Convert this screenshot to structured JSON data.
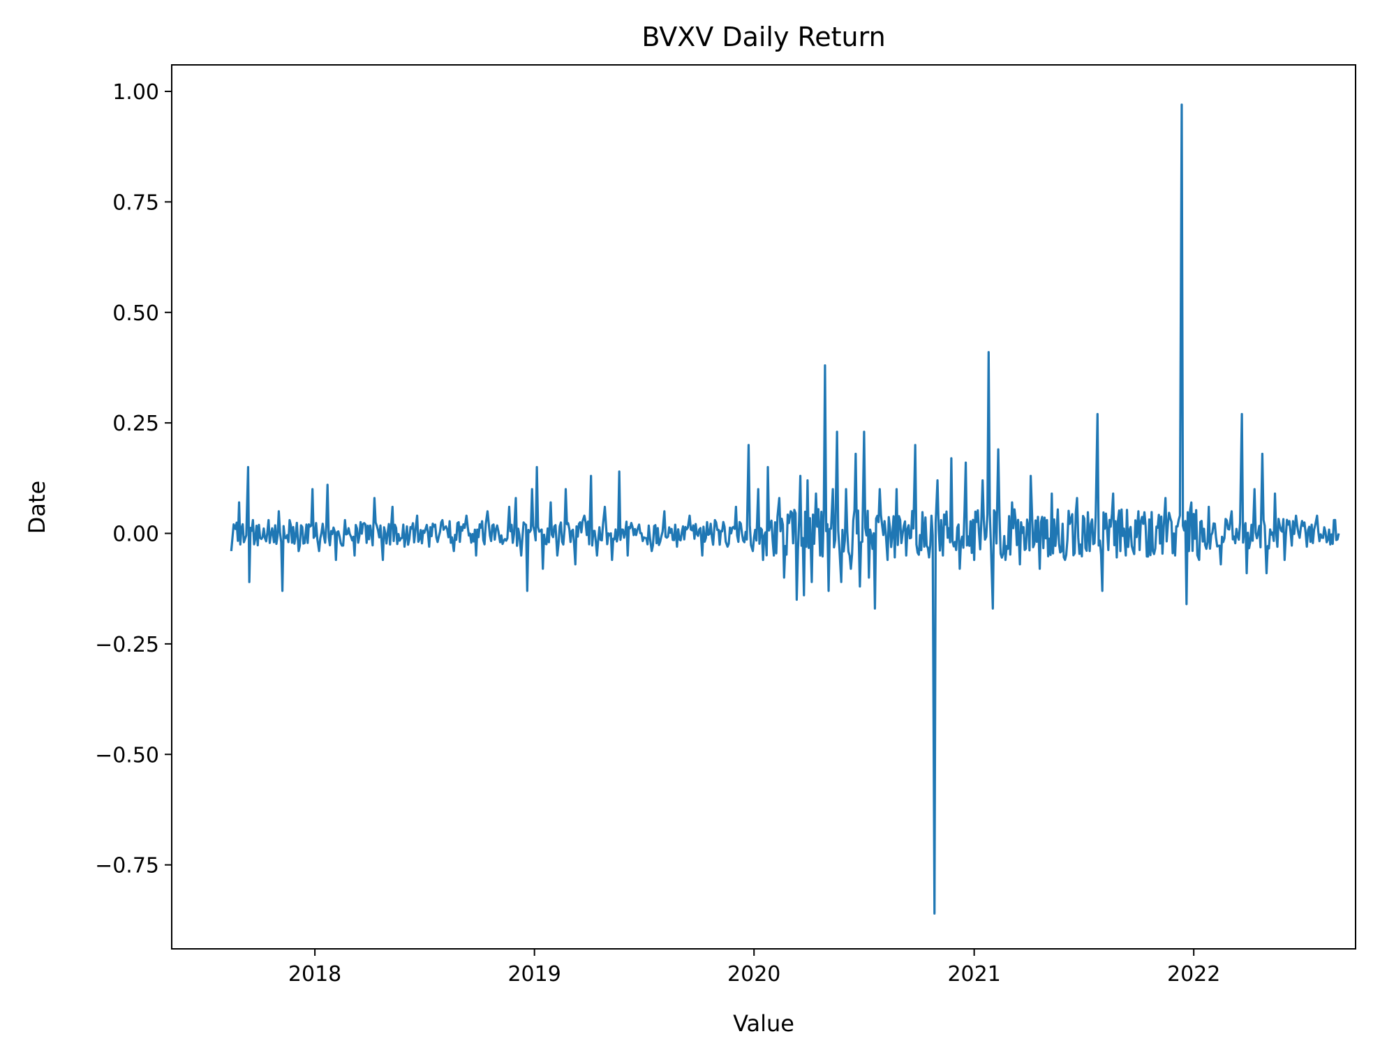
{
  "chart_data": {
    "type": "line",
    "title": "BVXV Daily Return",
    "xlabel": "Value",
    "ylabel": "Date",
    "x_tick_labels": [
      "2018",
      "2019",
      "2020",
      "2021",
      "2022"
    ],
    "y_tick_labels": [
      "1.00",
      "0.75",
      "0.50",
      "0.25",
      "0.00",
      "−0.25",
      "−0.50",
      "−0.75"
    ],
    "y_ticks": [
      1.0,
      0.75,
      0.5,
      0.25,
      0.0,
      -0.25,
      -0.5,
      -0.75
    ],
    "ylim": [
      -0.94,
      1.06
    ],
    "xlim": [
      "2017-05-08",
      "2022-09-27"
    ],
    "grid": false,
    "legend": "none",
    "series": [
      {
        "color": "#1f77b4",
        "points": [
          [
            "2017-08-15",
            -0.04
          ],
          [
            "2017-08-22",
            0.01
          ],
          [
            "2017-08-28",
            0.07
          ],
          [
            "2017-09-05",
            -0.02
          ],
          [
            "2017-09-12",
            0.15
          ],
          [
            "2017-09-14",
            -0.11
          ],
          [
            "2017-09-20",
            0.03
          ],
          [
            "2017-10-02",
            -0.01
          ],
          [
            "2017-10-16",
            0.03
          ],
          [
            "2017-10-25",
            -0.02
          ],
          [
            "2017-11-02",
            0.05
          ],
          [
            "2017-11-08",
            -0.13
          ],
          [
            "2017-11-20",
            0.03
          ],
          [
            "2017-12-05",
            -0.04
          ],
          [
            "2017-12-18",
            0.02
          ],
          [
            "2017-12-28",
            0.1
          ],
          [
            "2018-01-08",
            -0.04
          ],
          [
            "2018-01-22",
            0.11
          ],
          [
            "2018-02-05",
            -0.06
          ],
          [
            "2018-02-20",
            0.03
          ],
          [
            "2018-03-08",
            -0.05
          ],
          [
            "2018-03-26",
            0.02
          ],
          [
            "2018-04-10",
            0.08
          ],
          [
            "2018-04-24",
            -0.06
          ],
          [
            "2018-05-10",
            0.06
          ],
          [
            "2018-05-30",
            -0.03
          ],
          [
            "2018-06-20",
            0.04
          ],
          [
            "2018-07-10",
            -0.03
          ],
          [
            "2018-08-01",
            0.03
          ],
          [
            "2018-08-20",
            -0.04
          ],
          [
            "2018-09-10",
            0.04
          ],
          [
            "2018-09-26",
            -0.05
          ],
          [
            "2018-10-15",
            0.05
          ],
          [
            "2018-11-05",
            -0.02
          ],
          [
            "2018-11-20",
            0.06
          ],
          [
            "2018-12-01",
            0.08
          ],
          [
            "2018-12-10",
            -0.05
          ],
          [
            "2018-12-20",
            -0.13
          ],
          [
            "2018-12-28",
            0.1
          ],
          [
            "2019-01-05",
            0.15
          ],
          [
            "2019-01-15",
            -0.08
          ],
          [
            "2019-01-28",
            0.07
          ],
          [
            "2019-02-08",
            -0.05
          ],
          [
            "2019-02-22",
            0.1
          ],
          [
            "2019-03-10",
            -0.07
          ],
          [
            "2019-03-25",
            0.04
          ],
          [
            "2019-04-05",
            0.13
          ],
          [
            "2019-04-15",
            -0.05
          ],
          [
            "2019-04-28",
            0.06
          ],
          [
            "2019-05-10",
            -0.06
          ],
          [
            "2019-05-22",
            0.14
          ],
          [
            "2019-06-05",
            -0.05
          ],
          [
            "2019-06-24",
            0.02
          ],
          [
            "2019-07-15",
            -0.04
          ],
          [
            "2019-08-05",
            0.05
          ],
          [
            "2019-08-26",
            -0.03
          ],
          [
            "2019-09-16",
            0.04
          ],
          [
            "2019-10-07",
            -0.05
          ],
          [
            "2019-10-28",
            0.03
          ],
          [
            "2019-11-18",
            -0.03
          ],
          [
            "2019-12-02",
            0.06
          ],
          [
            "2019-12-16",
            -0.02
          ],
          [
            "2019-12-23",
            0.2
          ],
          [
            "2019-12-30",
            -0.04
          ],
          [
            "2020-01-08",
            0.1
          ],
          [
            "2020-01-16",
            -0.06
          ],
          [
            "2020-01-24",
            0.15
          ],
          [
            "2020-02-03",
            -0.05
          ],
          [
            "2020-02-12",
            0.08
          ],
          [
            "2020-02-20",
            -0.1
          ],
          [
            "2020-03-02",
            0.05
          ],
          [
            "2020-03-12",
            -0.15
          ],
          [
            "2020-03-18",
            0.13
          ],
          [
            "2020-03-24",
            -0.14
          ],
          [
            "2020-03-30",
            0.12
          ],
          [
            "2020-04-06",
            -0.11
          ],
          [
            "2020-04-13",
            0.09
          ],
          [
            "2020-04-20",
            -0.05
          ],
          [
            "2020-04-28",
            0.38
          ],
          [
            "2020-05-04",
            -0.13
          ],
          [
            "2020-05-11",
            0.1
          ],
          [
            "2020-05-18",
            0.23
          ],
          [
            "2020-05-25",
            -0.11
          ],
          [
            "2020-06-02",
            0.1
          ],
          [
            "2020-06-10",
            -0.08
          ],
          [
            "2020-06-18",
            0.18
          ],
          [
            "2020-06-25",
            -0.12
          ],
          [
            "2020-07-02",
            0.23
          ],
          [
            "2020-07-10",
            -0.1
          ],
          [
            "2020-07-20",
            -0.17
          ],
          [
            "2020-07-28",
            0.1
          ],
          [
            "2020-08-10",
            -0.06
          ],
          [
            "2020-08-25",
            0.1
          ],
          [
            "2020-09-10",
            -0.05
          ],
          [
            "2020-09-25",
            0.2
          ],
          [
            "2020-10-10",
            -0.03
          ],
          [
            "2020-10-22",
            0.04
          ],
          [
            "2020-10-27",
            -0.86
          ],
          [
            "2020-11-01",
            0.12
          ],
          [
            "2020-11-10",
            -0.05
          ],
          [
            "2020-11-24",
            0.17
          ],
          [
            "2020-12-08",
            -0.08
          ],
          [
            "2020-12-18",
            0.16
          ],
          [
            "2021-01-01",
            -0.06
          ],
          [
            "2021-01-15",
            0.12
          ],
          [
            "2021-01-25",
            0.41
          ],
          [
            "2021-02-01",
            -0.17
          ],
          [
            "2021-02-10",
            0.19
          ],
          [
            "2021-02-22",
            -0.06
          ],
          [
            "2021-03-05",
            0.07
          ],
          [
            "2021-03-18",
            -0.07
          ],
          [
            "2021-04-05",
            0.13
          ],
          [
            "2021-04-20",
            -0.08
          ],
          [
            "2021-05-10",
            0.09
          ],
          [
            "2021-06-01",
            -0.06
          ],
          [
            "2021-06-21",
            0.08
          ],
          [
            "2021-07-12",
            -0.04
          ],
          [
            "2021-07-25",
            0.27
          ],
          [
            "2021-08-02",
            -0.13
          ],
          [
            "2021-08-20",
            0.09
          ],
          [
            "2021-09-10",
            -0.05
          ],
          [
            "2021-10-01",
            0.05
          ],
          [
            "2021-10-25",
            -0.04
          ],
          [
            "2021-11-15",
            0.08
          ],
          [
            "2021-12-01",
            -0.05
          ],
          [
            "2021-12-12",
            0.97
          ],
          [
            "2021-12-20",
            -0.16
          ],
          [
            "2021-12-28",
            0.07
          ],
          [
            "2022-01-10",
            -0.06
          ],
          [
            "2022-01-26",
            0.06
          ],
          [
            "2022-02-15",
            -0.07
          ],
          [
            "2022-03-05",
            0.05
          ],
          [
            "2022-03-22",
            0.27
          ],
          [
            "2022-03-30",
            -0.09
          ],
          [
            "2022-04-12",
            0.1
          ],
          [
            "2022-04-25",
            0.18
          ],
          [
            "2022-05-02",
            -0.09
          ],
          [
            "2022-05-16",
            0.09
          ],
          [
            "2022-06-01",
            -0.06
          ],
          [
            "2022-06-20",
            0.04
          ],
          [
            "2022-07-08",
            -0.03
          ],
          [
            "2022-07-25",
            0.04
          ],
          [
            "2022-08-10",
            -0.02
          ],
          [
            "2022-08-22",
            0.03
          ],
          [
            "2022-08-30",
            0.0
          ]
        ]
      }
    ]
  }
}
